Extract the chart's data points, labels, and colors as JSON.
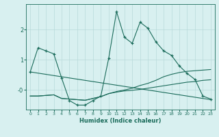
{
  "xlabel": "Humidex (Indice chaleur)",
  "x": [
    0,
    1,
    2,
    3,
    4,
    5,
    6,
    7,
    8,
    9,
    10,
    11,
    12,
    13,
    14,
    15,
    16,
    17,
    18,
    19,
    20,
    21,
    22,
    23
  ],
  "line_main": [
    0.6,
    1.4,
    1.3,
    1.2,
    0.4,
    -0.35,
    -0.5,
    -0.5,
    -0.35,
    -0.2,
    1.05,
    2.6,
    1.75,
    1.55,
    2.25,
    2.05,
    1.6,
    1.3,
    1.15,
    0.8,
    0.55,
    0.35,
    -0.2,
    -0.3
  ],
  "line_trend_down": [
    0.6,
    0.56,
    0.52,
    0.48,
    0.44,
    0.4,
    0.36,
    0.32,
    0.28,
    0.24,
    0.2,
    0.16,
    0.12,
    0.08,
    0.04,
    0.0,
    -0.04,
    -0.08,
    -0.12,
    -0.16,
    -0.2,
    -0.24,
    -0.28,
    -0.32
  ],
  "line_trend_up": [
    -0.2,
    -0.2,
    -0.18,
    -0.16,
    -0.28,
    -0.3,
    -0.32,
    -0.34,
    -0.28,
    -0.22,
    -0.12,
    -0.05,
    0.0,
    0.06,
    0.15,
    0.22,
    0.32,
    0.44,
    0.52,
    0.58,
    0.62,
    0.64,
    0.66,
    0.68
  ],
  "line_trend_flat": [
    -0.2,
    -0.2,
    -0.18,
    -0.16,
    -0.28,
    -0.3,
    -0.32,
    -0.34,
    -0.28,
    -0.22,
    -0.12,
    -0.07,
    -0.03,
    -0.01,
    0.02,
    0.06,
    0.1,
    0.14,
    0.18,
    0.22,
    0.26,
    0.28,
    0.32,
    0.34
  ],
  "color": "#1a6b5a",
  "bg_color": "#d8f0f0",
  "grid_color": "#b8dada",
  "ylim": [
    -0.65,
    2.85
  ],
  "yticks": [
    0,
    1,
    2
  ],
  "ytick_labels": [
    "-0",
    "1",
    "2"
  ],
  "xlim": [
    -0.5,
    23.5
  ]
}
